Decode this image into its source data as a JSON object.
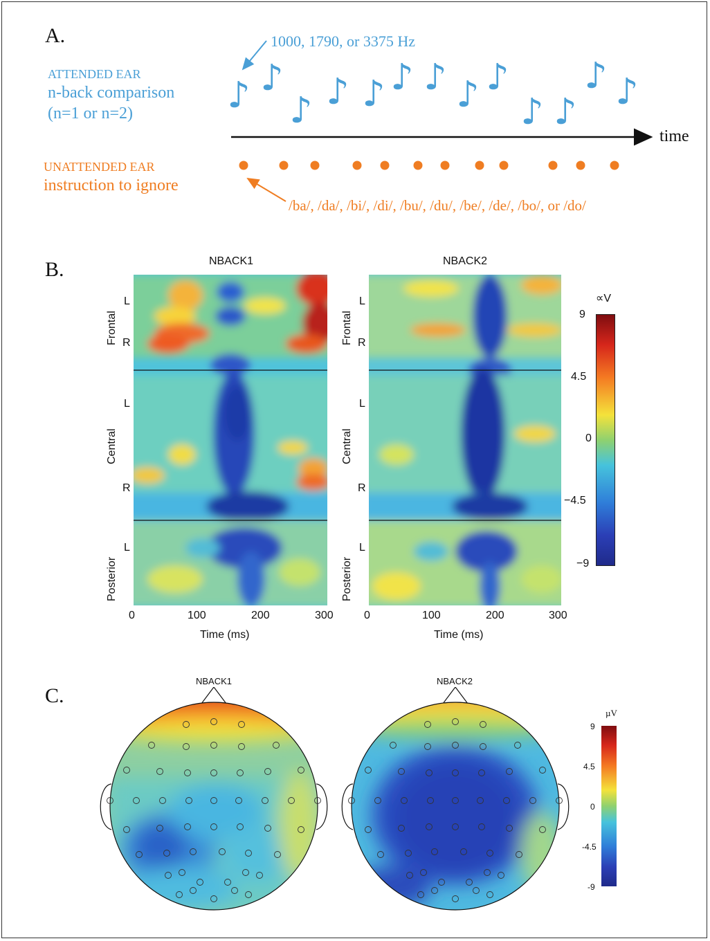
{
  "panelA": {
    "label": "A.",
    "freq_note": "1000, 1790, or 3375 Hz",
    "attended": {
      "line1": "ATTENDED EAR",
      "line2": "n-back comparison",
      "line3": "(n=1 or n=2)"
    },
    "unattended": {
      "line1": "UNATTENDED EAR",
      "line2": "instruction to ignore"
    },
    "syllables": "/ba/, /da/, /bi/, /di/, /bu/, /du/, /be/, /de/, /bo/, or /do/",
    "time_label": "time",
    "note_glyph": "♪",
    "colors": {
      "attended": "#4a9fd6",
      "unattended": "#ef7d22"
    }
  },
  "panelB": {
    "label": "B.",
    "left_title": "NBACK1",
    "right_title": "NBACK2",
    "regions": [
      "Frontal",
      "Central",
      "Posterior"
    ],
    "side_L": "L",
    "side_R": "R",
    "xticks": [
      "0",
      "100",
      "200",
      "300"
    ],
    "xlabel": "Time (ms)",
    "colorbar_unit": "∝V",
    "colorbar_ticks": [
      "9",
      "4.5",
      "0",
      "−4.5",
      "−9"
    ]
  },
  "panelC": {
    "label": "C.",
    "left_title": "NBACK1",
    "right_title": "NBACK2",
    "colorbar_unit": "µV",
    "colorbar_ticks": [
      "9",
      "4.5",
      "0",
      "-4.5",
      "-9"
    ]
  }
}
